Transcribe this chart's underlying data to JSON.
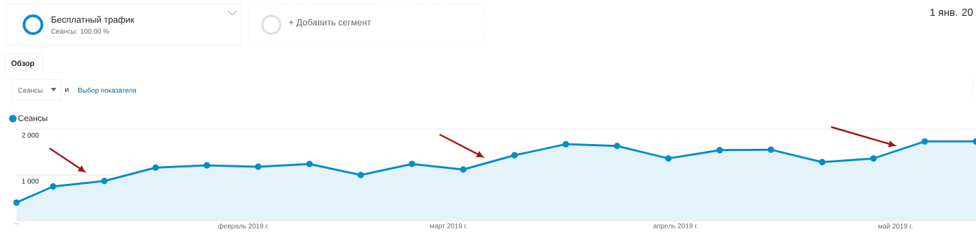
{
  "chart_data": {
    "type": "area",
    "title": "Бесплатный трафик",
    "subtitle": "Сеансы: 100,00 %",
    "annotations": [
      "+ Добавить сегмент",
      "1 янв. 20",
      "Обзор",
      "Сеансы",
      "и",
      "Выбор показателя"
    ],
    "x": [
      "2019-01-01",
      "2019-01-06",
      "2019-01-13",
      "2019-01-20",
      "2019-01-27",
      "2019-02-03",
      "2019-02-10",
      "2019-02-17",
      "2019-02-24",
      "2019-03-03",
      "2019-03-10",
      "2019-03-17",
      "2019-03-24",
      "2019-03-31",
      "2019-04-07",
      "2019-04-14",
      "2019-04-21",
      "2019-04-28",
      "2019-05-05",
      "2019-05-12"
    ],
    "series": [
      {
        "name": "Сеансы",
        "color": "#058dc7",
        "values": [
          400,
          750,
          870,
          1160,
          1210,
          1180,
          1240,
          1000,
          1240,
          1120,
          1430,
          1670,
          1630,
          1360,
          1540,
          1550,
          1280,
          1360,
          1730,
          1730
        ]
      }
    ],
    "xlim": [
      "2019-01-01",
      "2019-05-12"
    ],
    "xticks": [
      {
        "value": "2019-01-01",
        "label": "..."
      },
      {
        "value": "2019-02-01",
        "label": "февраль 2019 г."
      },
      {
        "value": "2019-03-01",
        "label": "март 2019 г."
      },
      {
        "value": "2019-04-01",
        "label": "апрель 2019 г."
      },
      {
        "value": "2019-05-01",
        "label": "май 2019 г."
      }
    ],
    "ylim": [
      0,
      2000
    ],
    "yticks": [
      {
        "value": 1000,
        "label": "1 000"
      },
      {
        "value": 2000,
        "label": "2 000"
      }
    ],
    "grid": "y",
    "legend": "top left",
    "marker": "circle",
    "line_style": "solid"
  }
}
